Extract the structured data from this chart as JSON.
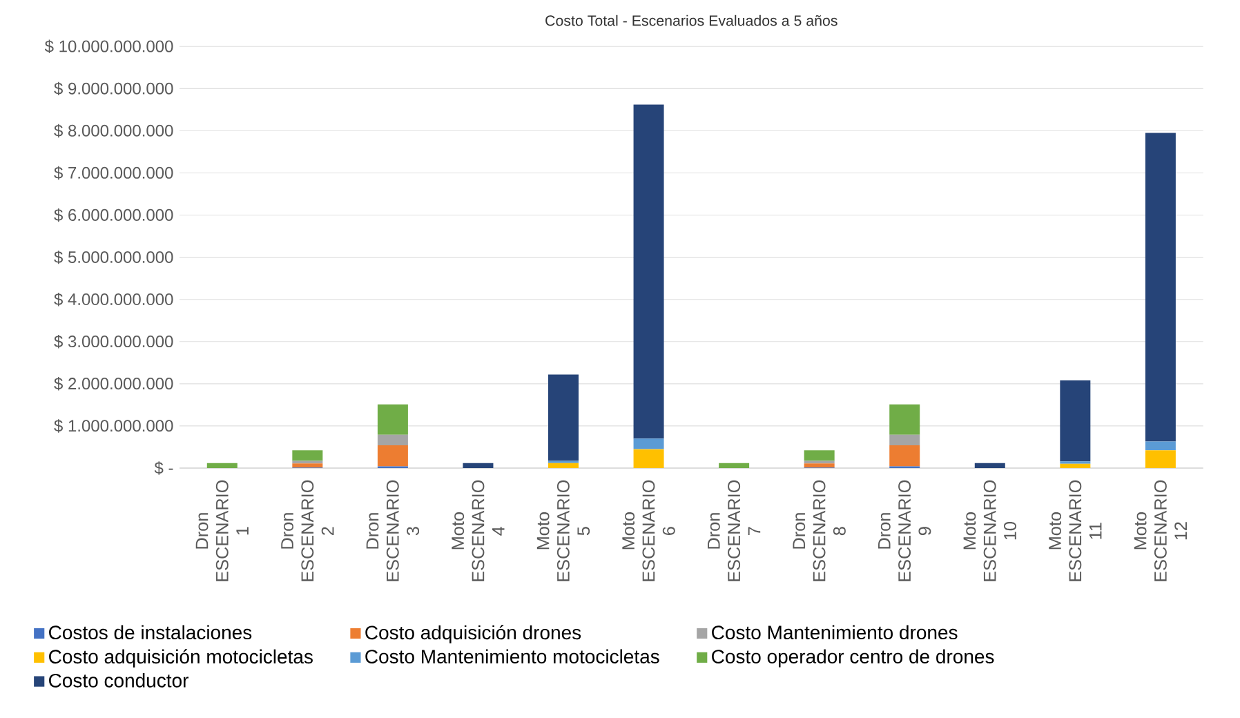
{
  "chart_data": {
    "type": "bar",
    "stacked": true,
    "title": "Costo Total - Escenarios Evaluados a 5 años",
    "categories": [
      "Dron ESCENARIO 1",
      "Dron ESCENARIO 2",
      "Dron ESCENARIO 3",
      "Moto ESCENARIO 4",
      "Moto ESCENARIO 5",
      "Moto ESCENARIO 6",
      "Dron ESCENARIO 7",
      "Dron ESCENARIO 8",
      "Dron ESCENARIO 9",
      "Moto ESCENARIO 10",
      "Moto ESCENARIO 11",
      "Moto ESCENARIO 12"
    ],
    "series": [
      {
        "name": "Costos de instalaciones",
        "color": "#4472c4",
        "values": [
          0,
          10000000,
          40000000,
          0,
          0,
          0,
          0,
          10000000,
          40000000,
          0,
          0,
          0
        ]
      },
      {
        "name": "Costo adquisición drones",
        "color": "#ed7d31",
        "values": [
          0,
          100000000,
          500000000,
          0,
          0,
          0,
          0,
          100000000,
          500000000,
          0,
          0,
          0
        ]
      },
      {
        "name": "Costo Mantenimiento drones",
        "color": "#a5a5a5",
        "values": [
          0,
          60000000,
          250000000,
          0,
          0,
          0,
          0,
          60000000,
          250000000,
          0,
          0,
          0
        ]
      },
      {
        "name": "Costo adquisición motocicletas",
        "color": "#ffc000",
        "values": [
          0,
          0,
          0,
          0,
          120000000,
          450000000,
          0,
          0,
          0,
          0,
          100000000,
          420000000
        ]
      },
      {
        "name": "Costo Mantenimiento motocicletas",
        "color": "#5b9bd5",
        "values": [
          0,
          0,
          0,
          0,
          50000000,
          250000000,
          0,
          0,
          0,
          0,
          60000000,
          210000000
        ]
      },
      {
        "name": "Costo operador centro de drones",
        "color": "#70ad47",
        "values": [
          120000000,
          250000000,
          720000000,
          0,
          0,
          0,
          120000000,
          250000000,
          720000000,
          0,
          0,
          0
        ]
      },
      {
        "name": "Costo conductor",
        "color": "#264478",
        "values": [
          0,
          0,
          0,
          120000000,
          2050000000,
          7920000000,
          0,
          0,
          0,
          120000000,
          1920000000,
          7320000000
        ]
      }
    ],
    "ylim": [
      0,
      10000000000
    ],
    "yticks": [
      {
        "value": 0,
        "label": "$ -"
      },
      {
        "value": 1000000000,
        "label": "$ 1.000.000.000"
      },
      {
        "value": 2000000000,
        "label": "$ 2.000.000.000"
      },
      {
        "value": 3000000000,
        "label": "$ 3.000.000.000"
      },
      {
        "value": 4000000000,
        "label": "$ 4.000.000.000"
      },
      {
        "value": 5000000000,
        "label": "$ 5.000.000.000"
      },
      {
        "value": 6000000000,
        "label": "$ 6.000.000.000"
      },
      {
        "value": 7000000000,
        "label": "$ 7.000.000.000"
      },
      {
        "value": 8000000000,
        "label": "$ 8.000.000.000"
      },
      {
        "value": 9000000000,
        "label": "$ 9.000.000.000"
      },
      {
        "value": 10000000000,
        "label": "$ 10.000.000.000"
      }
    ],
    "grid": "y",
    "legend": "bottom"
  }
}
